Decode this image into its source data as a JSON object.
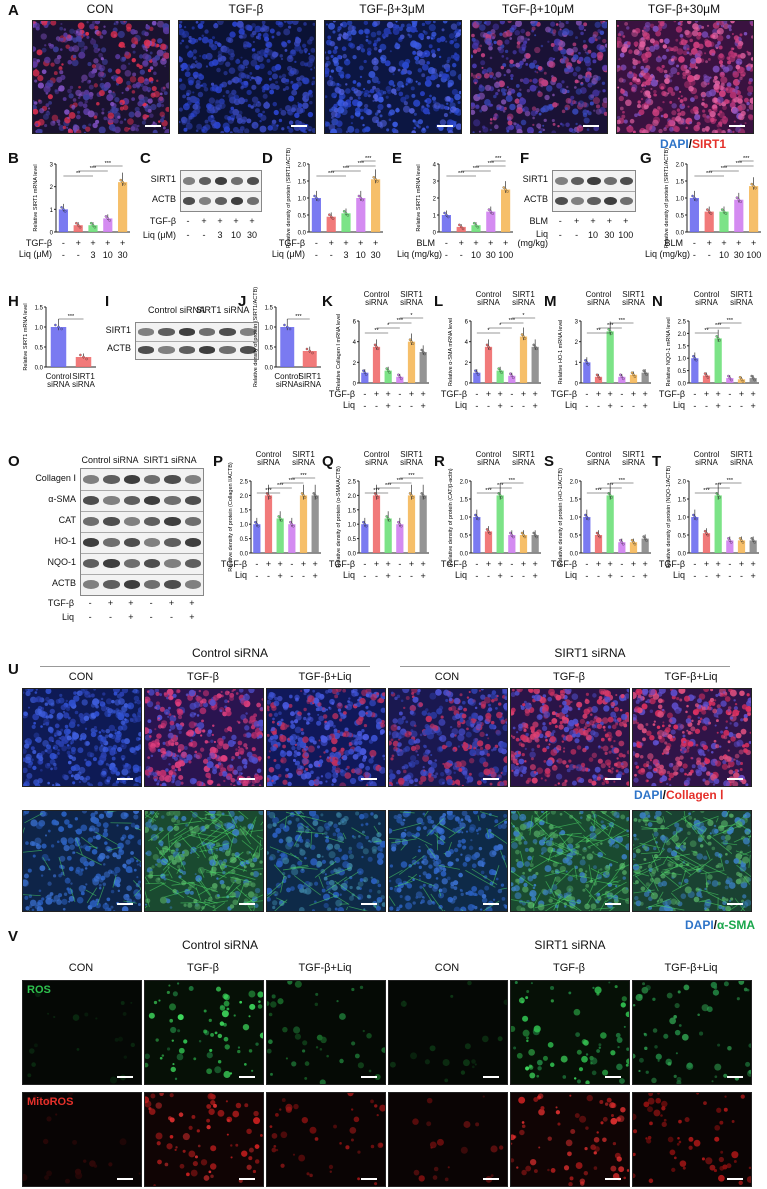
{
  "panels": {
    "A": {
      "letter": "A",
      "titles": [
        "CON",
        "TGF-β",
        "TGF-β+3μM",
        "TGF-β+10μM",
        "TGF-β+30μM"
      ]
    },
    "B": {
      "letter": "B",
      "ylabel": "Relative SIRT1 mRNA level",
      "row1": "TGF-β",
      "row1_vals": [
        "-",
        "+",
        "+",
        "+",
        "+"
      ],
      "row2": "Liq (μM)",
      "row2_vals": [
        "-",
        "-",
        "3",
        "10",
        "30"
      ],
      "values": [
        1.0,
        0.3,
        0.3,
        0.6,
        2.2
      ],
      "yticks": [
        "0",
        "1",
        "2",
        "3"
      ],
      "ymax": 3,
      "sig": [
        "**",
        "***",
        "***"
      ]
    },
    "C": {
      "letter": "C",
      "bands": [
        "SIRT1",
        "ACTB"
      ],
      "row1": "TGF-β",
      "row1_vals": [
        "-",
        "+",
        "+",
        "+",
        "+"
      ],
      "row2": "Liq (μM)",
      "row2_vals": [
        "-",
        "-",
        "3",
        "10",
        "30"
      ]
    },
    "D": {
      "letter": "D",
      "ylabel": "Relative density of protein (SIRT1/ACTB)",
      "row1": "TGF-β",
      "row1_vals": [
        "-",
        "+",
        "+",
        "+",
        "+"
      ],
      "row2": "Liq (μM)",
      "row2_vals": [
        "-",
        "-",
        "3",
        "10",
        "30"
      ],
      "values": [
        1.0,
        0.45,
        0.55,
        1.0,
        1.55
      ],
      "yticks": [
        "0.0",
        "0.5",
        "1.0",
        "1.5",
        "2.0"
      ],
      "ymax": 2,
      "sig": [
        "***",
        "***",
        "***",
        "***"
      ]
    },
    "E": {
      "letter": "E",
      "ylabel": "Relative SIRT1 mRNA level",
      "row1": "BLM",
      "row1_vals": [
        "-",
        "+",
        "+",
        "+",
        "+"
      ],
      "row2": "Liq (mg/kg)",
      "row2_vals": [
        "-",
        "-",
        "10",
        "30",
        "100"
      ],
      "values": [
        1.0,
        0.3,
        0.4,
        1.2,
        2.5
      ],
      "yticks": [
        "0",
        "1",
        "2",
        "3",
        "4"
      ],
      "ymax": 4,
      "sig": [
        "***",
        "***",
        "***",
        "***"
      ]
    },
    "F": {
      "letter": "F",
      "bands": [
        "SIRT1",
        "ACTB"
      ],
      "row1": "BLM",
      "row1_vals": [
        "-",
        "+",
        "+",
        "+",
        "+"
      ],
      "row2": "Liq (mg/kg)",
      "row2_vals": [
        "-",
        "-",
        "10",
        "30",
        "100"
      ]
    },
    "G": {
      "letter": "G",
      "legend_a": "DAPI",
      "legend_b": "SIRT1",
      "ylabel": "Relative density of protein (SIRT1/ACTB)",
      "row1": "BLM",
      "row1_vals": [
        "-",
        "+",
        "+",
        "+",
        "+"
      ],
      "row2": "Liq (mg/kg)",
      "row2_vals": [
        "-",
        "-",
        "10",
        "30",
        "100"
      ],
      "values": [
        1.0,
        0.6,
        0.6,
        0.95,
        1.35
      ],
      "yticks": [
        "0.0",
        "0.5",
        "1.0",
        "1.5",
        "2.0"
      ],
      "ymax": 2,
      "sig": [
        "***",
        "***",
        "***",
        "***"
      ]
    },
    "H": {
      "letter": "H",
      "ylabel": "Relative SIRT1 mRNA level",
      "cats": [
        "Control siRNA",
        "SIRT1 siRNA"
      ],
      "values": [
        1.0,
        0.25
      ],
      "yticks": [
        "0.0",
        "0.5",
        "1.0",
        "1.5"
      ],
      "ymax": 1.5,
      "sig": [
        "***"
      ]
    },
    "I": {
      "letter": "I",
      "groups": [
        "Control siRNA",
        "SIRT1 siRNA"
      ],
      "bands": [
        "SIRT1",
        "ACTB"
      ]
    },
    "J": {
      "letter": "J",
      "ylabel": "Relative density of protein (SIRT1/ACTB)",
      "cats": [
        "Control siRNA",
        "SIRT1 siRNA"
      ],
      "values": [
        1.0,
        0.4
      ],
      "yticks": [
        "0.0",
        "0.5",
        "1.0",
        "1.5"
      ],
      "ymax": 1.5,
      "sig": [
        "***"
      ]
    },
    "K": {
      "letter": "K",
      "ylabel": "Relative Collagen Ⅰ mRNA level",
      "values": [
        1.0,
        3.5,
        1.2,
        0.6,
        4.0,
        3.0
      ],
      "yticks": [
        "0",
        "2",
        "4",
        "6"
      ],
      "ymax": 6,
      "sig": [
        "**",
        "*",
        "***",
        "*"
      ]
    },
    "L": {
      "letter": "L",
      "ylabel": "Relative α-SMA mRNA level",
      "values": [
        1.0,
        3.5,
        1.2,
        0.7,
        4.5,
        3.5
      ],
      "yticks": [
        "0",
        "2",
        "4",
        "6"
      ],
      "ymax": 6,
      "sig": [
        "*",
        "*",
        "***",
        "*"
      ]
    },
    "M": {
      "letter": "M",
      "ylabel": "Relative HO-1 mRNA level",
      "values": [
        1.0,
        0.3,
        2.5,
        0.3,
        0.4,
        0.5
      ],
      "yticks": [
        "0",
        "1",
        "2",
        "3"
      ],
      "ymax": 3,
      "sig": [
        "**",
        "***",
        "***"
      ]
    },
    "N": {
      "letter": "N",
      "ylabel": "Relative NQO-1 mRNA level",
      "values": [
        1.0,
        0.3,
        1.8,
        0.2,
        0.15,
        0.2
      ],
      "yticks": [
        "0.0",
        "0.5",
        "1.0",
        "1.5",
        "2.0",
        "2.5"
      ],
      "ymax": 2.5,
      "sig": [
        "**",
        "***",
        "***"
      ]
    },
    "O": {
      "letter": "O",
      "groups": [
        "Control siRNA",
        "SIRT1 siRNA"
      ],
      "bands": [
        "Collagen Ⅰ",
        "α-SMA",
        "CAT",
        "HO-1",
        "NQO-1",
        "ACTB"
      ],
      "row1": "TGF-β",
      "row1_vals": [
        "-",
        "+",
        "+",
        "-",
        "+",
        "+"
      ],
      "row2": "Liq",
      "row2_vals": [
        "-",
        "-",
        "+",
        "-",
        "-",
        "+"
      ]
    },
    "P": {
      "letter": "P",
      "ylabel": "Relative density of protein (Collagen Ⅰ/ACTB)",
      "values": [
        1.0,
        2.0,
        1.2,
        1.0,
        2.0,
        2.0
      ],
      "yticks": [
        "0.0",
        "0.5",
        "1.0",
        "1.5",
        "2.0",
        "2.5"
      ],
      "ymax": 2.5,
      "sig": [
        "***",
        "***",
        "***",
        "***"
      ]
    },
    "Q": {
      "letter": "Q",
      "ylabel": "Relative density of protein (α-SMA/ACTB)",
      "values": [
        1.0,
        2.0,
        1.2,
        1.0,
        2.0,
        2.0
      ],
      "yticks": [
        "0.0",
        "0.5",
        "1.0",
        "1.5",
        "2.0",
        "2.5"
      ],
      "ymax": 2.5,
      "sig": [
        "***",
        "***",
        "***",
        "***"
      ]
    },
    "R": {
      "letter": "R",
      "ylabel": "Relative density of protein (CAT/β-actin)",
      "values": [
        1.0,
        0.6,
        1.6,
        0.5,
        0.5,
        0.5
      ],
      "yticks": [
        "0.0",
        "0.5",
        "1.0",
        "1.5",
        "2.0"
      ],
      "ymax": 2,
      "sig": [
        "***",
        "***",
        "***"
      ]
    },
    "S": {
      "letter": "S",
      "ylabel": "Relative density of protein (HO-1/ACTB)",
      "values": [
        1.0,
        0.5,
        1.6,
        0.3,
        0.3,
        0.4
      ],
      "yticks": [
        "0.0",
        "0.5",
        "1.0",
        "1.5",
        "2.0"
      ],
      "ymax": 2,
      "sig": [
        "***",
        "***",
        "***"
      ]
    },
    "T": {
      "letter": "T",
      "ylabel": "Relative density of protein (NQO-1/ACTB)",
      "values": [
        1.0,
        0.55,
        1.6,
        0.35,
        0.35,
        0.35
      ],
      "yticks": [
        "0.0",
        "0.5",
        "1.0",
        "1.5",
        "2.0"
      ],
      "ymax": 2,
      "sig": [
        "***",
        "***",
        "***"
      ]
    },
    "U": {
      "letter": "U",
      "group_a": "Control siRNA",
      "group_b": "SIRT1 siRNA",
      "titles": [
        "CON",
        "TGF-β",
        "TGF-β+Liq",
        "CON",
        "TGF-β",
        "TGF-β+Liq"
      ],
      "legend1_a": "DAPI",
      "legend1_b": "Collagen Ⅰ",
      "legend2_a": "DAPI",
      "legend2_b": "α-SMA"
    },
    "V": {
      "letter": "V",
      "group_a": "Control siRNA",
      "group_b": "SIRT1 siRNA",
      "titles": [
        "CON",
        "TGF-β",
        "TGF-β+Liq",
        "CON",
        "TGF-β",
        "TGF-β+Liq"
      ],
      "row1": "ROS",
      "row2": "MitoROS"
    }
  },
  "common": {
    "six_row1": "TGF-β",
    "six_row1_vals": [
      "-",
      "+",
      "+",
      "-",
      "+",
      "+"
    ],
    "six_row2": "Liq",
    "six_row2_vals": [
      "-",
      "-",
      "+",
      "-",
      "-",
      "+"
    ],
    "grp_a": "Control siRNA",
    "grp_b": "SIRT1 siRNA"
  },
  "colors": {
    "bar5": [
      "#6b6cf0",
      "#f06b6b",
      "#6ee07a",
      "#cf7ef0",
      "#f5b85a"
    ],
    "bar6": [
      "#6b6cf0",
      "#f06b6b",
      "#6ee07a",
      "#cf7ef0",
      "#f5b85a",
      "#888888"
    ],
    "dapi": "#2e74c8",
    "red": "#e4302a",
    "green": "#19a64b"
  }
}
